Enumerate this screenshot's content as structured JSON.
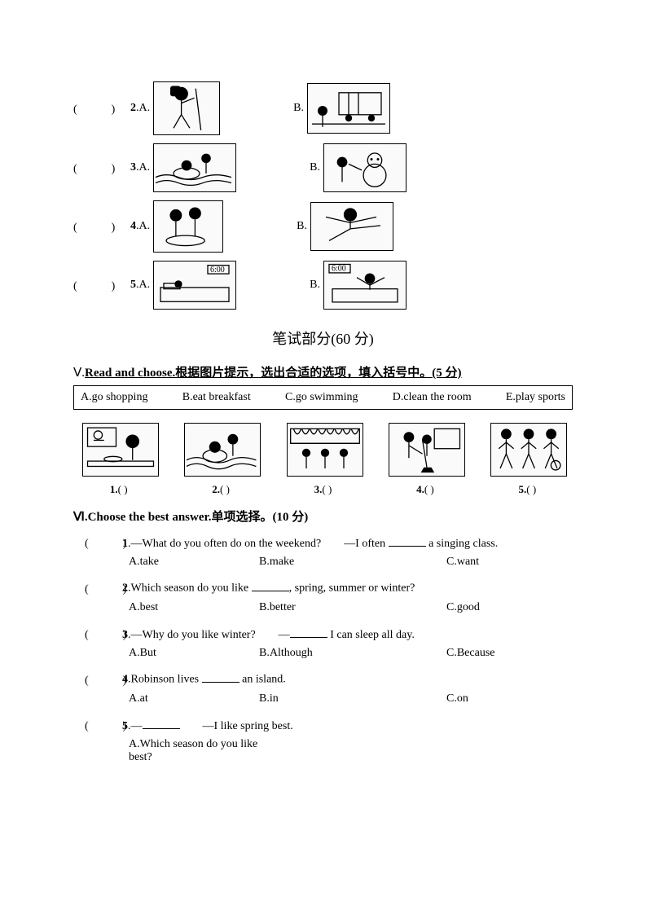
{
  "listening": {
    "rows": [
      {
        "num": "2",
        "a_label": "A.",
        "b_label": "B.",
        "a_w": 80,
        "a_h": 64,
        "b_w": 100,
        "b_h": 60,
        "a_kind": "hiker",
        "b_kind": "bus"
      },
      {
        "num": "3",
        "a_label": "A.",
        "b_label": "B.",
        "a_w": 100,
        "a_h": 58,
        "b_w": 100,
        "b_h": 58,
        "a_kind": "swim",
        "b_kind": "snowman"
      },
      {
        "num": "4",
        "a_label": "A.",
        "b_label": "B.",
        "a_w": 84,
        "a_h": 62,
        "b_w": 100,
        "b_h": 58,
        "a_kind": "eat",
        "b_kind": "kungfu"
      },
      {
        "num": "5",
        "a_label": "A.",
        "b_label": "B.",
        "a_w": 100,
        "a_h": 58,
        "b_w": 100,
        "b_h": 58,
        "a_kind": "sleep6",
        "b_kind": "wake6"
      }
    ]
  },
  "section_written_title": "笔试部分(60 分)",
  "sectionV": {
    "title_prefix": "Ⅴ.",
    "title_under": "Read and choose.根据图片提示，选出合适的选项，填入括号中。(5 分)",
    "options": {
      "A": "A.go shopping",
      "B": "B.eat breakfast",
      "C": "C.go swimming",
      "D": "D.clean the room",
      "E": "E.play sports"
    },
    "items": [
      {
        "num": "1.",
        "kind": "breakfast"
      },
      {
        "num": "2.",
        "kind": "swim"
      },
      {
        "num": "3.",
        "kind": "shop"
      },
      {
        "num": "4.",
        "kind": "clean"
      },
      {
        "num": "5.",
        "kind": "sports"
      }
    ],
    "paren": "(        )"
  },
  "sectionVI": {
    "title": "Ⅵ.Choose the best answer.单项选择。(10 分)",
    "questions": [
      {
        "num": "1",
        "pre": ".—What do you often do on the weekend?　　—I often ",
        "post": " a singing class.",
        "A": "A.take",
        "B": "B.make",
        "C": "C.want"
      },
      {
        "num": "2",
        "pre": ".Which season do you like ",
        "post": ", spring, summer or winter?",
        "A": "A.best",
        "B": "B.better",
        "C": "C.good"
      },
      {
        "num": "3",
        "pre": ".—Why do you like winter?　　—",
        "post": " I can sleep all day.",
        "A": "A.But",
        "B": "B.Although",
        "C": "C.Because"
      },
      {
        "num": "4",
        "pre": ".Robinson lives ",
        "post": " an island.",
        "A": "A.at",
        "B": "B.in",
        "C": "C.on"
      },
      {
        "num": "5",
        "pre": ".—",
        "post": "　　—I like spring best.",
        "A": "A.Which season do you like best?",
        "B": "",
        "C": ""
      }
    ]
  },
  "colors": {
    "border": "#000000",
    "bg": "#ffffff",
    "imgbg": "#f4f4f4"
  }
}
